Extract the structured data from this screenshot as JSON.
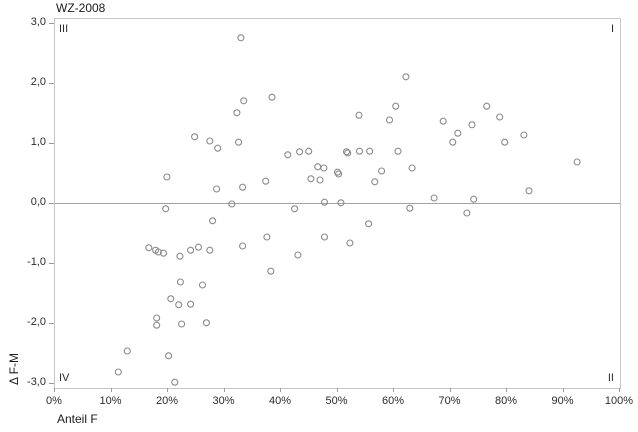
{
  "title": "WZ-2008",
  "quadrants": {
    "top_left": "III",
    "top_right": "I",
    "bottom_left": "IV",
    "bottom_right": "II"
  },
  "chart_data": {
    "type": "scatter",
    "title": "WZ-2008",
    "xlabel": "Anteil F",
    "ylabel": "Δ F-M",
    "xlim": [
      0,
      100
    ],
    "ylim": [
      -3.1,
      3.1
    ],
    "grid": false,
    "legend": "none",
    "reference_line_y": 0,
    "marker": "open-circle",
    "colors": {
      "marker_stroke": "#8a8a8a",
      "frame": "#c6c6c6",
      "zero_line": "#a3a3a3",
      "text": "#1a1a1a",
      "background": "#ffffff"
    },
    "x_ticks": [
      {
        "label": "0%",
        "value": 0
      },
      {
        "label": "10%",
        "value": 10
      },
      {
        "label": "20%",
        "value": 20
      },
      {
        "label": "30%",
        "value": 30
      },
      {
        "label": "40%",
        "value": 40
      },
      {
        "label": "50%",
        "value": 50
      },
      {
        "label": "60%",
        "value": 60
      },
      {
        "label": "70%",
        "value": 70
      },
      {
        "label": "80%",
        "value": 80
      },
      {
        "label": "90%",
        "value": 90
      },
      {
        "label": "100%",
        "value": 100
      }
    ],
    "y_ticks": [
      {
        "label": "3,0",
        "value": 3
      },
      {
        "label": "2,0",
        "value": 2
      },
      {
        "label": "1,0",
        "value": 1
      },
      {
        "label": "0,0",
        "value": 0
      },
      {
        "label": "-1,0",
        "value": -1
      },
      {
        "label": "-2,0",
        "value": -2
      },
      {
        "label": "-3,0",
        "value": -3
      }
    ],
    "points": [
      [
        32.9,
        2.77
      ],
      [
        33.4,
        1.72
      ],
      [
        32.2,
        1.52
      ],
      [
        24.7,
        1.12
      ],
      [
        27.4,
        1.05
      ],
      [
        28.8,
        0.93
      ],
      [
        32.5,
        1.03
      ],
      [
        38.4,
        1.78
      ],
      [
        62.1,
        2.12
      ],
      [
        60.3,
        1.63
      ],
      [
        53.8,
        1.48
      ],
      [
        59.2,
        1.4
      ],
      [
        76.4,
        1.63
      ],
      [
        78.7,
        1.45
      ],
      [
        68.7,
        1.38
      ],
      [
        73.8,
        1.32
      ],
      [
        71.3,
        1.18
      ],
      [
        83.0,
        1.15
      ],
      [
        70.4,
        1.03
      ],
      [
        79.6,
        1.03
      ],
      [
        19.8,
        0.45
      ],
      [
        28.6,
        0.25
      ],
      [
        33.2,
        0.28
      ],
      [
        31.3,
        0.0
      ],
      [
        19.6,
        -0.08
      ],
      [
        27.9,
        -0.28
      ],
      [
        16.6,
        -0.73
      ],
      [
        17.8,
        -0.77
      ],
      [
        18.3,
        -0.8
      ],
      [
        19.2,
        -0.82
      ],
      [
        22.1,
        -0.87
      ],
      [
        24.0,
        -0.77
      ],
      [
        25.4,
        -0.72
      ],
      [
        27.4,
        -0.77
      ],
      [
        33.2,
        -0.7
      ],
      [
        41.2,
        0.82
      ],
      [
        43.3,
        0.87
      ],
      [
        44.9,
        0.88
      ],
      [
        51.6,
        0.87
      ],
      [
        51.8,
        0.85
      ],
      [
        53.9,
        0.88
      ],
      [
        55.7,
        0.88
      ],
      [
        60.7,
        0.88
      ],
      [
        46.5,
        0.62
      ],
      [
        47.6,
        0.6
      ],
      [
        50.0,
        0.53
      ],
      [
        50.2,
        0.5
      ],
      [
        45.3,
        0.42
      ],
      [
        46.9,
        0.4
      ],
      [
        57.8,
        0.55
      ],
      [
        56.6,
        0.37
      ],
      [
        63.2,
        0.6
      ],
      [
        37.3,
        0.38
      ],
      [
        47.7,
        0.03
      ],
      [
        50.6,
        0.02
      ],
      [
        42.4,
        -0.08
      ],
      [
        62.8,
        -0.07
      ],
      [
        55.5,
        -0.33
      ],
      [
        37.5,
        -0.55
      ],
      [
        47.7,
        -0.55
      ],
      [
        52.2,
        -0.65
      ],
      [
        43.0,
        -0.85
      ],
      [
        92.4,
        0.7
      ],
      [
        83.9,
        0.22
      ],
      [
        74.1,
        0.08
      ],
      [
        67.1,
        0.1
      ],
      [
        72.9,
        -0.15
      ],
      [
        22.2,
        -1.3
      ],
      [
        26.1,
        -1.35
      ],
      [
        20.5,
        -1.58
      ],
      [
        21.9,
        -1.68
      ],
      [
        24.0,
        -1.67
      ],
      [
        18.0,
        -1.9
      ],
      [
        18.0,
        -2.02
      ],
      [
        22.4,
        -2.0
      ],
      [
        26.8,
        -1.98
      ],
      [
        12.8,
        -2.45
      ],
      [
        20.1,
        -2.53
      ],
      [
        11.2,
        -2.8
      ],
      [
        21.2,
        -2.97
      ],
      [
        38.2,
        -1.12
      ]
    ]
  }
}
